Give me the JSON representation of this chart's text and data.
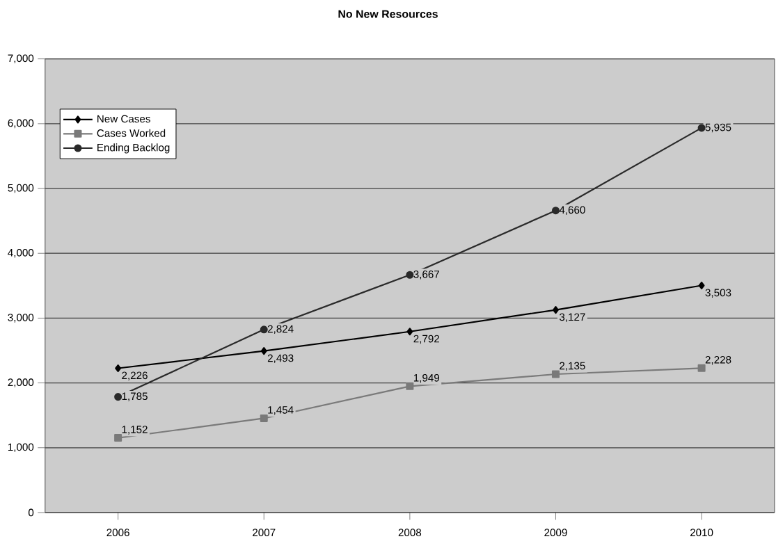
{
  "chart_data": {
    "type": "line",
    "title": "No New Resources",
    "categories": [
      "2006",
      "2007",
      "2008",
      "2009",
      "2010"
    ],
    "series": [
      {
        "name": "New Cases",
        "color": "#000000",
        "marker": "diamond",
        "values": [
          2226,
          2493,
          2792,
          3127,
          3503
        ],
        "value_labels": [
          "2,226",
          "2,493",
          "2,792",
          "3,127",
          "3,503"
        ]
      },
      {
        "name": "Cases Worked",
        "color": "#7a7a7a",
        "marker": "square",
        "values": [
          1152,
          1454,
          1949,
          2135,
          2228
        ],
        "value_labels": [
          "1,152",
          "1,454",
          "1,949",
          "2,135",
          "2,228"
        ]
      },
      {
        "name": "Ending Backlog",
        "color": "#2a2a2a",
        "marker": "circle",
        "values": [
          1785,
          2824,
          3667,
          4660,
          5935
        ],
        "value_labels": [
          "1,785",
          "2,824",
          "3,667",
          "4,660",
          "5,935"
        ]
      }
    ],
    "ylim": [
      0,
      7000
    ],
    "yticks": [
      0,
      {
        "value": 1000,
        "label": "1,000"
      },
      {
        "value": 2000,
        "label": "2,000"
      },
      {
        "value": 3000,
        "label": "3,000"
      },
      {
        "value": 4000,
        "label": "4,000"
      },
      {
        "value": 5000,
        "label": "5,000"
      },
      {
        "value": 6000,
        "label": "6,000"
      },
      {
        "value": 7000,
        "label": "7,000"
      }
    ],
    "grid": "y",
    "legend": "top left",
    "line_style": "solid"
  }
}
